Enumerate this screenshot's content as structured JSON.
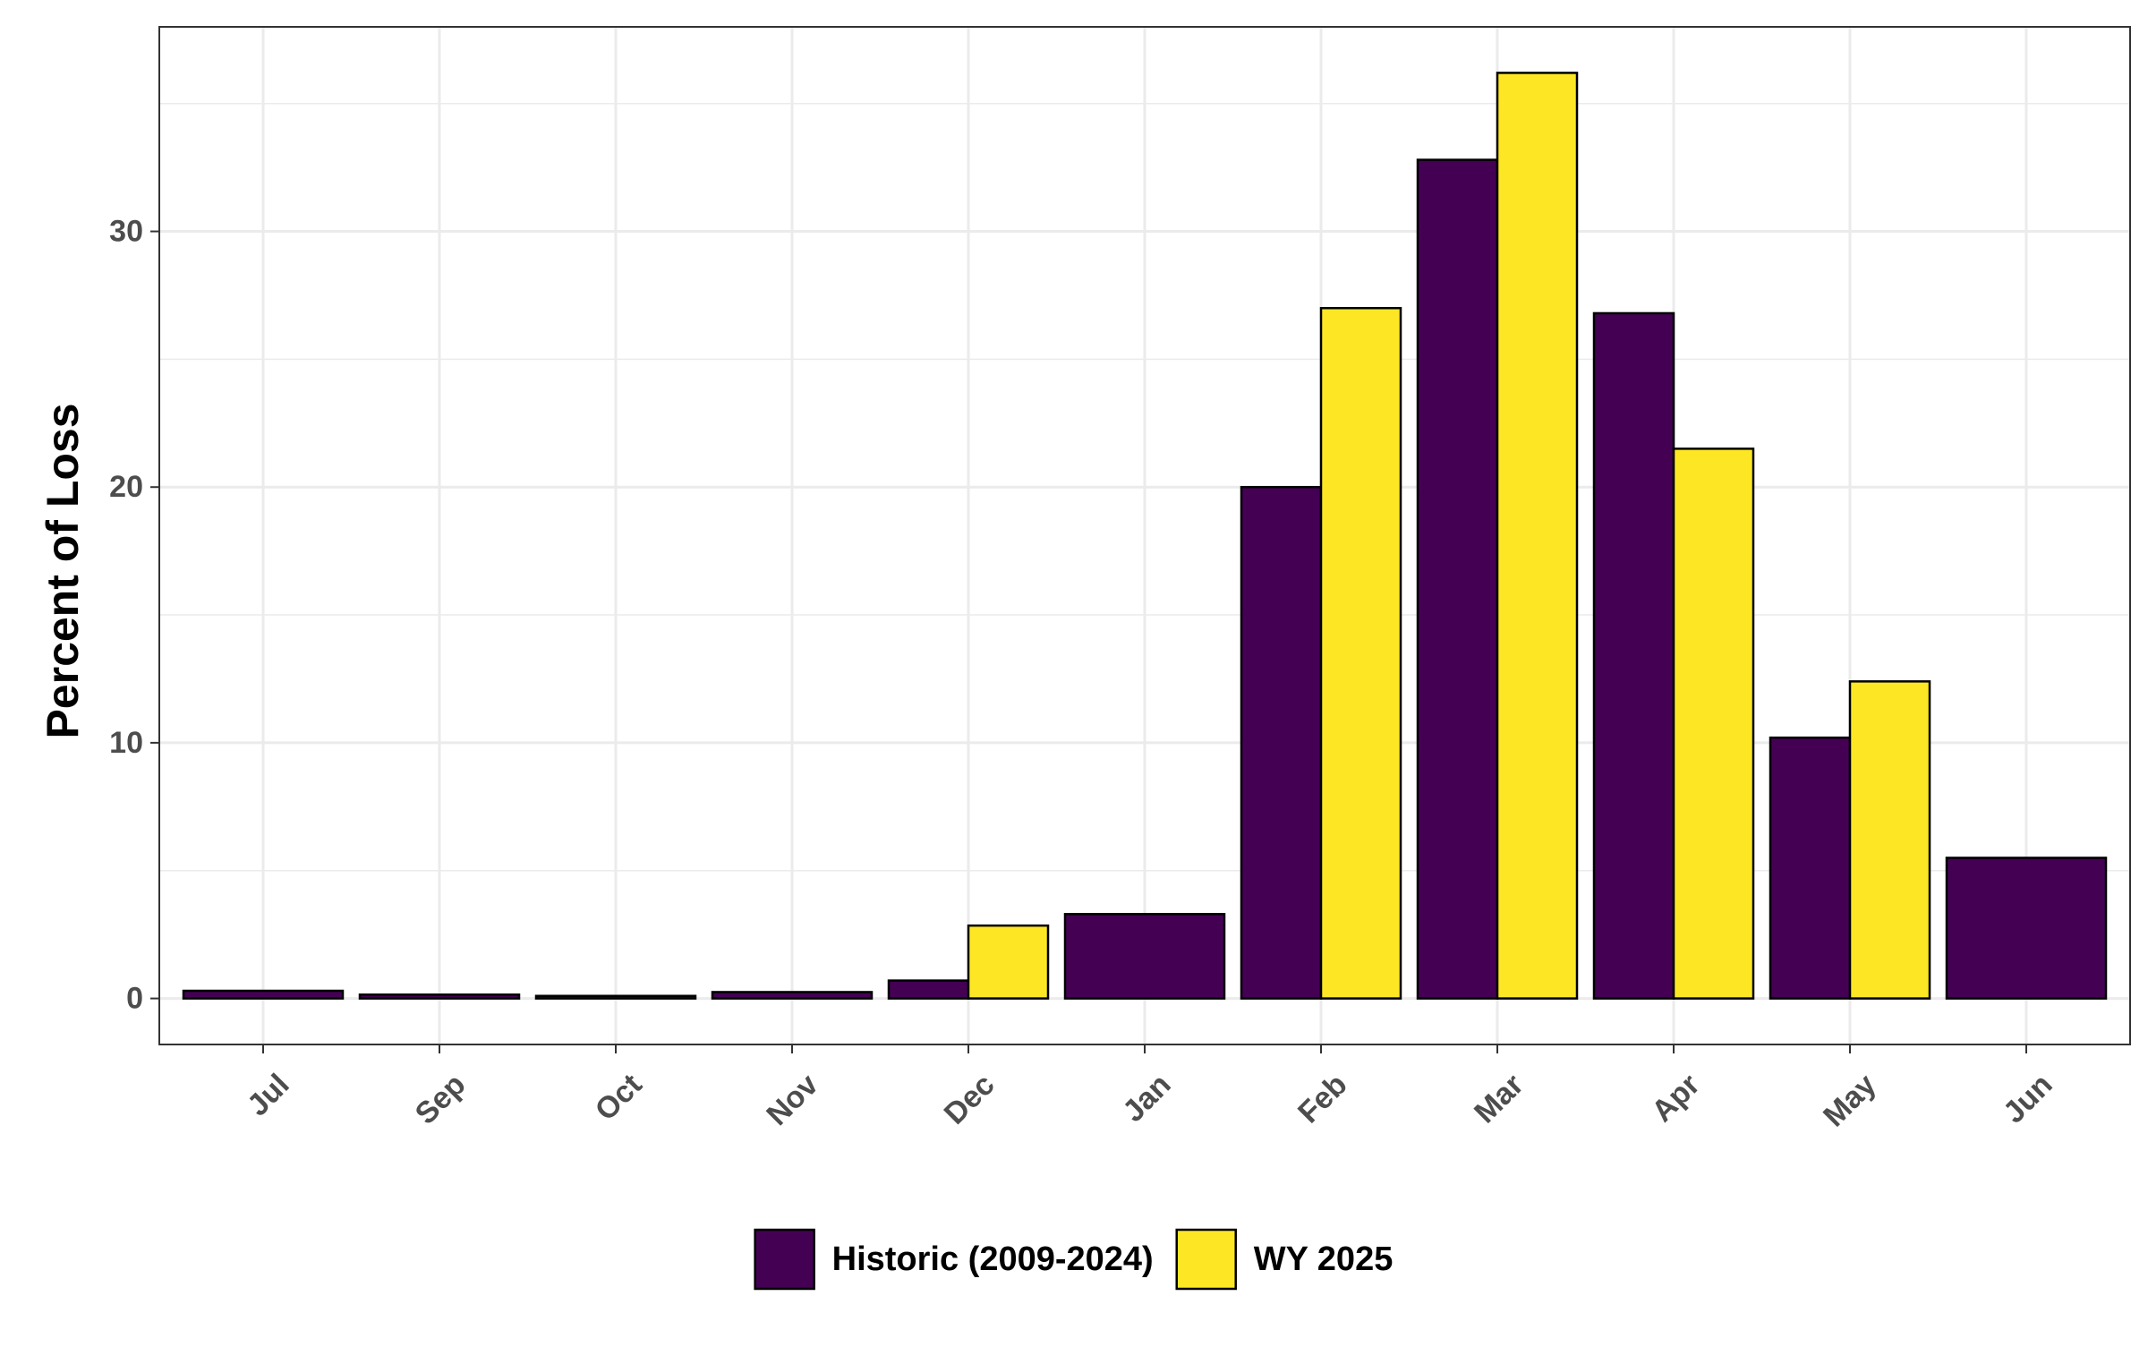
{
  "chart_data": {
    "type": "bar",
    "title": "",
    "xlabel": "",
    "ylabel": "Percent of Loss",
    "categories": [
      "Jul",
      "Sep",
      "Oct",
      "Nov",
      "Dec",
      "Jan",
      "Feb",
      "Mar",
      "Apr",
      "May",
      "Jun"
    ],
    "series": [
      {
        "name": "Historic (2009-2024)",
        "color": "#440154",
        "values": [
          0.3,
          0.15,
          0.1,
          0.25,
          0.7,
          3.3,
          20.0,
          32.8,
          26.8,
          10.2,
          5.5
        ]
      },
      {
        "name": "WY 2025",
        "color": "#FDE725",
        "values": [
          null,
          null,
          null,
          null,
          2.85,
          null,
          27.0,
          36.2,
          21.5,
          12.4,
          null
        ]
      }
    ],
    "yticks": [
      0,
      10,
      20,
      30
    ],
    "ylim": [
      -1.8,
      38.0
    ],
    "grid": true,
    "legend_position": "bottom"
  }
}
